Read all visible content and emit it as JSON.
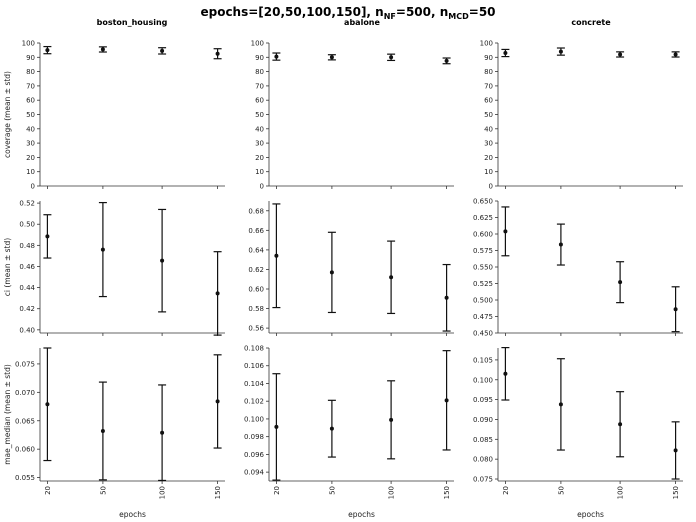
{
  "figure": {
    "title_prefix": "epochs=[20,50,100,150], n",
    "sub_nf": "NF",
    "mid": "=500, n",
    "sub_mcd": "MCD",
    "suffix": "=50"
  },
  "columns": [
    "boston_housing",
    "abalone",
    "concrete"
  ],
  "row_labels": [
    "coverage (mean ± std)",
    "ci (mean ± std)",
    "mae_median (mean ± std)"
  ],
  "xlabel": "epochs",
  "chart_data": [
    {
      "type": "scatter",
      "dataset": "boston_housing",
      "metric": "coverage",
      "x": [
        20,
        50,
        100,
        150
      ],
      "y": [
        95.0,
        95.5,
        94.5,
        92.5
      ],
      "yerr": [
        2.5,
        1.8,
        2.2,
        3.5
      ],
      "ylim": [
        0,
        100
      ],
      "yticks": [
        0,
        10,
        20,
        30,
        40,
        50,
        60,
        70,
        80,
        90,
        100
      ],
      "yticklabels": [
        "0",
        "10",
        "20",
        "30",
        "40",
        "50",
        "60",
        "70",
        "80",
        "90",
        "100"
      ]
    },
    {
      "type": "scatter",
      "dataset": "abalone",
      "metric": "coverage",
      "x": [
        20,
        50,
        100,
        150
      ],
      "y": [
        90.5,
        90.0,
        90.0,
        87.5
      ],
      "yerr": [
        2.5,
        1.8,
        2.2,
        2.0
      ],
      "ylim": [
        0,
        100
      ],
      "yticks": [
        0,
        10,
        20,
        30,
        40,
        50,
        60,
        70,
        80,
        90,
        100
      ],
      "yticklabels": [
        "0",
        "10",
        "20",
        "30",
        "40",
        "50",
        "60",
        "70",
        "80",
        "90",
        "100"
      ]
    },
    {
      "type": "scatter",
      "dataset": "concrete",
      "metric": "coverage",
      "x": [
        20,
        50,
        100,
        150
      ],
      "y": [
        93.0,
        94.0,
        92.0,
        92.0
      ],
      "yerr": [
        2.5,
        2.5,
        1.8,
        1.8
      ],
      "ylim": [
        0,
        100
      ],
      "yticks": [
        0,
        10,
        20,
        30,
        40,
        50,
        60,
        70,
        80,
        90,
        100
      ],
      "yticklabels": [
        "0",
        "10",
        "20",
        "30",
        "40",
        "50",
        "60",
        "70",
        "80",
        "90",
        "100"
      ]
    },
    {
      "type": "scatter",
      "dataset": "boston_housing",
      "metric": "ci",
      "x": [
        20,
        50,
        100,
        150
      ],
      "y": [
        0.4885,
        0.476,
        0.4655,
        0.4345
      ],
      "yerr": [
        0.0205,
        0.0445,
        0.0485,
        0.0395
      ],
      "ylim": [
        0.397,
        0.522
      ],
      "yticks": [
        0.4,
        0.42,
        0.44,
        0.46,
        0.48,
        0.5,
        0.52
      ],
      "yticklabels": [
        "0.40",
        "0.42",
        "0.44",
        "0.46",
        "0.48",
        "0.50",
        "0.52"
      ]
    },
    {
      "type": "scatter",
      "dataset": "abalone",
      "metric": "ci",
      "x": [
        20,
        50,
        100,
        150
      ],
      "y": [
        0.634,
        0.617,
        0.612,
        0.591
      ],
      "yerr": [
        0.053,
        0.041,
        0.037,
        0.034
      ],
      "ylim": [
        0.555,
        0.69
      ],
      "yticks": [
        0.56,
        0.58,
        0.6,
        0.62,
        0.64,
        0.66,
        0.68
      ],
      "yticklabels": [
        "0.56",
        "0.58",
        "0.60",
        "0.62",
        "0.64",
        "0.66",
        "0.68"
      ]
    },
    {
      "type": "scatter",
      "dataset": "concrete",
      "metric": "ci",
      "x": [
        20,
        50,
        100,
        150
      ],
      "y": [
        0.604,
        0.584,
        0.527,
        0.486
      ],
      "yerr": [
        0.037,
        0.031,
        0.031,
        0.034
      ],
      "ylim": [
        0.45,
        0.65
      ],
      "yticks": [
        0.45,
        0.475,
        0.5,
        0.525,
        0.55,
        0.575,
        0.6,
        0.625,
        0.65
      ],
      "yticklabels": [
        "0.450",
        "0.475",
        "0.500",
        "0.525",
        "0.550",
        "0.575",
        "0.600",
        "0.625",
        "0.650"
      ]
    },
    {
      "type": "scatter",
      "dataset": "boston_housing",
      "metric": "mae_median",
      "x": [
        20,
        50,
        100,
        150
      ],
      "y": [
        0.0679,
        0.0632,
        0.0629,
        0.0684
      ],
      "yerr": [
        0.0099,
        0.0086,
        0.0084,
        0.0082
      ],
      "ylim": [
        0.0544,
        0.0778
      ],
      "yticks": [
        0.055,
        0.06,
        0.065,
        0.07,
        0.075
      ],
      "yticklabels": [
        "0.055",
        "0.060",
        "0.065",
        "0.070",
        "0.075"
      ]
    },
    {
      "type": "scatter",
      "dataset": "abalone",
      "metric": "mae_median",
      "x": [
        20,
        50,
        100,
        150
      ],
      "y": [
        0.0991,
        0.0989,
        0.0999,
        0.1021
      ],
      "yerr": [
        0.006,
        0.0032,
        0.0044,
        0.0056
      ],
      "ylim": [
        0.093,
        0.108
      ],
      "yticks": [
        0.094,
        0.096,
        0.098,
        0.1,
        0.102,
        0.104,
        0.106,
        0.108
      ],
      "yticklabels": [
        "0.094",
        "0.096",
        "0.098",
        "0.100",
        "0.102",
        "0.104",
        "0.106",
        "0.108"
      ]
    },
    {
      "type": "scatter",
      "dataset": "concrete",
      "metric": "mae_median",
      "x": [
        20,
        50,
        100,
        150
      ],
      "y": [
        0.1015,
        0.0938,
        0.0888,
        0.0822
      ],
      "yerr": [
        0.0066,
        0.0115,
        0.0082,
        0.0072
      ],
      "ylim": [
        0.0745,
        0.108
      ],
      "yticks": [
        0.075,
        0.08,
        0.085,
        0.09,
        0.095,
        0.1,
        0.105
      ],
      "yticklabels": [
        "0.075",
        "0.080",
        "0.085",
        "0.090",
        "0.095",
        "0.100",
        "0.105"
      ]
    }
  ]
}
